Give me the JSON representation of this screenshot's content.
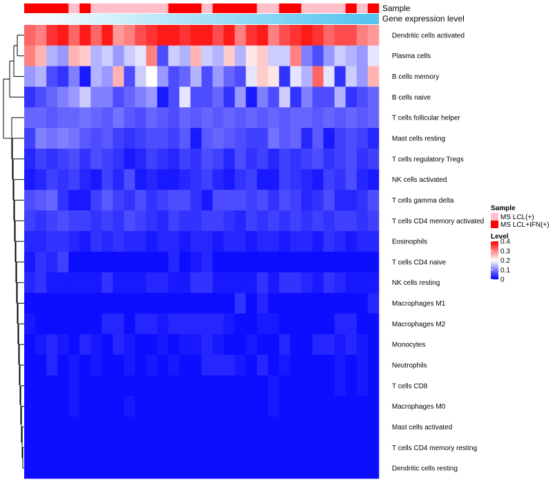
{
  "chart_data": {
    "type": "heatmap",
    "title": "",
    "row_labels": [
      "Dendritic cells activated",
      "Plasma cells",
      "B cells memory",
      "B cells naive",
      "T cells follicular helper",
      "Mast cells resting",
      "T cells regulatory  Tregs",
      "NK cells activated",
      "T cells gamma delta",
      "T cells CD4 memory activated",
      "Eosinophils",
      "T cells CD4 naive",
      "NK cells resting",
      "Macrophages M1",
      "Macrophages M2",
      "Monocytes",
      "Neutrophils",
      "T cells CD8",
      "Macrophages M0",
      "Mast cells activated",
      "T cells CD4 memory resting",
      "Dendritic cells resting"
    ],
    "column_annotations": [
      {
        "name": "Sample",
        "legend_title": "Sample",
        "levels": [
          "MS LCL(+)",
          "MS LCL+IFN(+)"
        ],
        "colors": [
          "#ffc0cb",
          "#ff0000"
        ],
        "values": [
          1,
          1,
          1,
          1,
          0,
          1,
          0,
          0,
          0,
          0,
          0,
          0,
          0,
          1,
          1,
          1,
          0,
          1,
          1,
          1,
          1,
          0,
          0,
          1,
          1,
          0,
          0,
          0,
          0,
          1,
          0,
          1
        ]
      },
      {
        "name": "Gene expression level",
        "gradient": [
          "#ffffff",
          "#4fc3ef"
        ]
      }
    ],
    "color_scale": {
      "legend_title": "Level",
      "min": 0,
      "max": 0.4,
      "ticks": [
        "0",
        "0.1",
        "0.2",
        "0.3",
        "0.4"
      ],
      "colors": [
        "#0000ff",
        "#ffffff",
        "#ff0000"
      ]
    },
    "values": [
      [
        0.32,
        0.3,
        0.36,
        0.38,
        0.32,
        0.38,
        0.32,
        0.38,
        0.28,
        0.3,
        0.34,
        0.36,
        0.38,
        0.38,
        0.36,
        0.38,
        0.38,
        0.34,
        0.38,
        0.3,
        0.36,
        0.38,
        0.3,
        0.34,
        0.36,
        0.38,
        0.36,
        0.32,
        0.34,
        0.34,
        0.3,
        0.28
      ],
      [
        0.3,
        0.26,
        0.14,
        0.12,
        0.26,
        0.24,
        0.14,
        0.16,
        0.12,
        0.16,
        0.18,
        0.3,
        0.06,
        0.16,
        0.14,
        0.26,
        0.16,
        0.14,
        0.24,
        0.14,
        0.22,
        0.24,
        0.16,
        0.16,
        0.3,
        0.1,
        0.06,
        0.12,
        0.16,
        0.14,
        0.12,
        0.18
      ],
      [
        0.12,
        0.14,
        0.06,
        0.04,
        0.1,
        0.02,
        0.14,
        0.12,
        0.26,
        0.06,
        0.16,
        0.2,
        0.12,
        0.06,
        0.08,
        0.14,
        0.06,
        0.12,
        0.08,
        0.06,
        0.18,
        0.24,
        0.22,
        0.04,
        0.18,
        0.14,
        0.32,
        0.18,
        0.04,
        0.16,
        0.12,
        0.26
      ],
      [
        0.04,
        0.06,
        0.08,
        0.1,
        0.12,
        0.16,
        0.1,
        0.1,
        0.06,
        0.08,
        0.1,
        0.12,
        0.02,
        0.06,
        0.18,
        0.06,
        0.06,
        0.08,
        0.04,
        0.12,
        0.02,
        0.1,
        0.06,
        0.16,
        0.04,
        0.1,
        0.06,
        0.06,
        0.14,
        0.04,
        0.06,
        0.08
      ],
      [
        0.08,
        0.08,
        0.07,
        0.08,
        0.08,
        0.09,
        0.08,
        0.07,
        0.09,
        0.07,
        0.06,
        0.08,
        0.07,
        0.06,
        0.08,
        0.07,
        0.08,
        0.07,
        0.08,
        0.07,
        0.08,
        0.07,
        0.08,
        0.07,
        0.08,
        0.08,
        0.07,
        0.08,
        0.07,
        0.08,
        0.07,
        0.08
      ],
      [
        0.05,
        0.1,
        0.09,
        0.1,
        0.09,
        0.07,
        0.06,
        0.07,
        0.05,
        0.04,
        0.05,
        0.06,
        0.06,
        0.05,
        0.07,
        0.02,
        0.07,
        0.08,
        0.07,
        0.06,
        0.05,
        0.05,
        0.09,
        0.07,
        0.08,
        0.03,
        0.07,
        0.02,
        0.05,
        0.06,
        0.05,
        0.03
      ],
      [
        0.03,
        0.05,
        0.04,
        0.05,
        0.06,
        0.04,
        0.06,
        0.05,
        0.04,
        0.02,
        0.03,
        0.05,
        0.04,
        0.03,
        0.05,
        0.04,
        0.06,
        0.05,
        0.03,
        0.06,
        0.04,
        0.05,
        0.03,
        0.05,
        0.04,
        0.05,
        0.06,
        0.04,
        0.05,
        0.06,
        0.04,
        0.05
      ],
      [
        0.02,
        0.03,
        0.05,
        0.04,
        0.05,
        0.03,
        0.02,
        0.05,
        0.03,
        0.06,
        0.02,
        0.03,
        0.02,
        0.02,
        0.03,
        0.04,
        0.05,
        0.03,
        0.02,
        0.04,
        0.05,
        0.02,
        0.02,
        0.05,
        0.04,
        0.03,
        0.02,
        0.05,
        0.04,
        0.06,
        0.03,
        0.02
      ],
      [
        0.06,
        0.07,
        0.08,
        0.04,
        0.02,
        0.02,
        0.05,
        0.07,
        0.05,
        0.04,
        0.06,
        0.04,
        0.05,
        0.06,
        0.06,
        0.04,
        0.02,
        0.06,
        0.06,
        0.06,
        0.05,
        0.06,
        0.04,
        0.06,
        0.05,
        0.03,
        0.04,
        0.06,
        0.03,
        0.03,
        0.04,
        0.06
      ],
      [
        0.05,
        0.04,
        0.05,
        0.06,
        0.05,
        0.05,
        0.04,
        0.05,
        0.04,
        0.06,
        0.05,
        0.04,
        0.03,
        0.05,
        0.04,
        0.04,
        0.05,
        0.05,
        0.04,
        0.03,
        0.05,
        0.04,
        0.05,
        0.04,
        0.05,
        0.04,
        0.05,
        0.04,
        0.05,
        0.05,
        0.04,
        0.05
      ],
      [
        0.03,
        0.03,
        0.04,
        0.04,
        0.03,
        0.02,
        0.04,
        0.03,
        0.04,
        0.03,
        0.03,
        0.02,
        0.03,
        0.03,
        0.02,
        0.03,
        0.03,
        0.02,
        0.03,
        0.03,
        0.02,
        0.03,
        0.03,
        0.02,
        0.03,
        0.03,
        0.02,
        0.04,
        0.03,
        0.02,
        0.03,
        0.03
      ],
      [
        0.02,
        0.04,
        0.03,
        0.05,
        0.01,
        0.01,
        0.01,
        0.01,
        0.01,
        0.01,
        0.01,
        0.01,
        0.01,
        0.03,
        0.01,
        0.02,
        0.03,
        0.01,
        0.01,
        0.01,
        0.01,
        0.01,
        0.01,
        0.01,
        0.01,
        0.01,
        0.01,
        0.01,
        0.01,
        0.01,
        0.01,
        0.01
      ],
      [
        0.03,
        0.04,
        0.02,
        0.02,
        0.02,
        0.02,
        0.02,
        0.04,
        0.02,
        0.02,
        0.02,
        0.03,
        0.03,
        0.02,
        0.02,
        0.04,
        0.04,
        0.02,
        0.02,
        0.02,
        0.02,
        0.04,
        0.02,
        0.04,
        0.04,
        0.03,
        0.02,
        0.04,
        0.03,
        0.02,
        0.02,
        0.02
      ],
      [
        0.01,
        0.01,
        0.01,
        0.01,
        0.01,
        0.01,
        0.01,
        0.01,
        0.01,
        0.01,
        0.01,
        0.01,
        0.01,
        0.01,
        0.01,
        0.01,
        0.01,
        0.01,
        0.01,
        0.04,
        0.01,
        0.03,
        0.01,
        0.01,
        0.01,
        0.01,
        0.01,
        0.01,
        0.01,
        0.01,
        0.01,
        0.03
      ],
      [
        0.02,
        0.01,
        0.01,
        0.01,
        0.01,
        0.01,
        0.01,
        0.03,
        0.03,
        0.01,
        0.03,
        0.03,
        0.02,
        0.03,
        0.03,
        0.03,
        0.03,
        0.03,
        0.02,
        0.01,
        0.01,
        0.02,
        0.02,
        0.01,
        0.01,
        0.01,
        0.01,
        0.01,
        0.03,
        0.03,
        0.01,
        0.01
      ],
      [
        0.01,
        0.02,
        0.03,
        0.02,
        0.01,
        0.03,
        0.02,
        0.01,
        0.03,
        0.02,
        0.01,
        0.01,
        0.02,
        0.01,
        0.02,
        0.02,
        0.03,
        0.02,
        0.01,
        0.01,
        0.02,
        0.01,
        0.01,
        0.03,
        0.01,
        0.01,
        0.03,
        0.03,
        0.02,
        0.03,
        0.02,
        0.01
      ],
      [
        0.01,
        0.01,
        0.03,
        0.01,
        0.02,
        0.01,
        0.02,
        0.01,
        0.01,
        0.02,
        0.01,
        0.02,
        0.01,
        0.02,
        0.01,
        0.01,
        0.03,
        0.03,
        0.03,
        0.02,
        0.01,
        0.03,
        0.01,
        0.02,
        0.01,
        0.01,
        0.01,
        0.01,
        0.02,
        0.01,
        0.02,
        0.01
      ],
      [
        0.01,
        0.01,
        0.01,
        0.01,
        0.02,
        0.01,
        0.01,
        0.01,
        0.01,
        0.01,
        0.01,
        0.01,
        0.01,
        0.01,
        0.01,
        0.01,
        0.01,
        0.01,
        0.01,
        0.01,
        0.01,
        0.01,
        0.02,
        0.01,
        0.01,
        0.01,
        0.01,
        0.01,
        0.02,
        0.01,
        0.02,
        0.01
      ],
      [
        0.01,
        0.01,
        0.01,
        0.01,
        0.02,
        0.01,
        0.01,
        0.01,
        0.01,
        0.02,
        0.01,
        0.01,
        0.01,
        0.01,
        0.01,
        0.01,
        0.01,
        0.01,
        0.01,
        0.01,
        0.01,
        0.01,
        0.02,
        0.01,
        0.01,
        0.01,
        0.01,
        0.01,
        0.01,
        0.01,
        0.01,
        0.01
      ],
      [
        0.01,
        0.01,
        0.01,
        0.01,
        0.01,
        0.01,
        0.01,
        0.01,
        0.01,
        0.01,
        0.01,
        0.01,
        0.01,
        0.01,
        0.01,
        0.01,
        0.01,
        0.01,
        0.01,
        0.01,
        0.01,
        0.01,
        0.01,
        0.01,
        0.01,
        0.01,
        0.01,
        0.01,
        0.01,
        0.01,
        0.01,
        0.01
      ],
      [
        0.01,
        0.01,
        0.01,
        0.01,
        0.01,
        0.01,
        0.01,
        0.01,
        0.01,
        0.01,
        0.01,
        0.01,
        0.01,
        0.01,
        0.01,
        0.01,
        0.01,
        0.01,
        0.01,
        0.01,
        0.01,
        0.01,
        0.01,
        0.01,
        0.01,
        0.01,
        0.01,
        0.01,
        0.01,
        0.01,
        0.01,
        0.01
      ],
      [
        0.01,
        0.01,
        0.01,
        0.01,
        0.01,
        0.01,
        0.01,
        0.01,
        0.01,
        0.01,
        0.01,
        0.01,
        0.01,
        0.01,
        0.01,
        0.01,
        0.01,
        0.01,
        0.01,
        0.01,
        0.01,
        0.01,
        0.01,
        0.01,
        0.01,
        0.01,
        0.01,
        0.01,
        0.01,
        0.01,
        0.01,
        0.01
      ]
    ],
    "row_dendrogram": true
  }
}
